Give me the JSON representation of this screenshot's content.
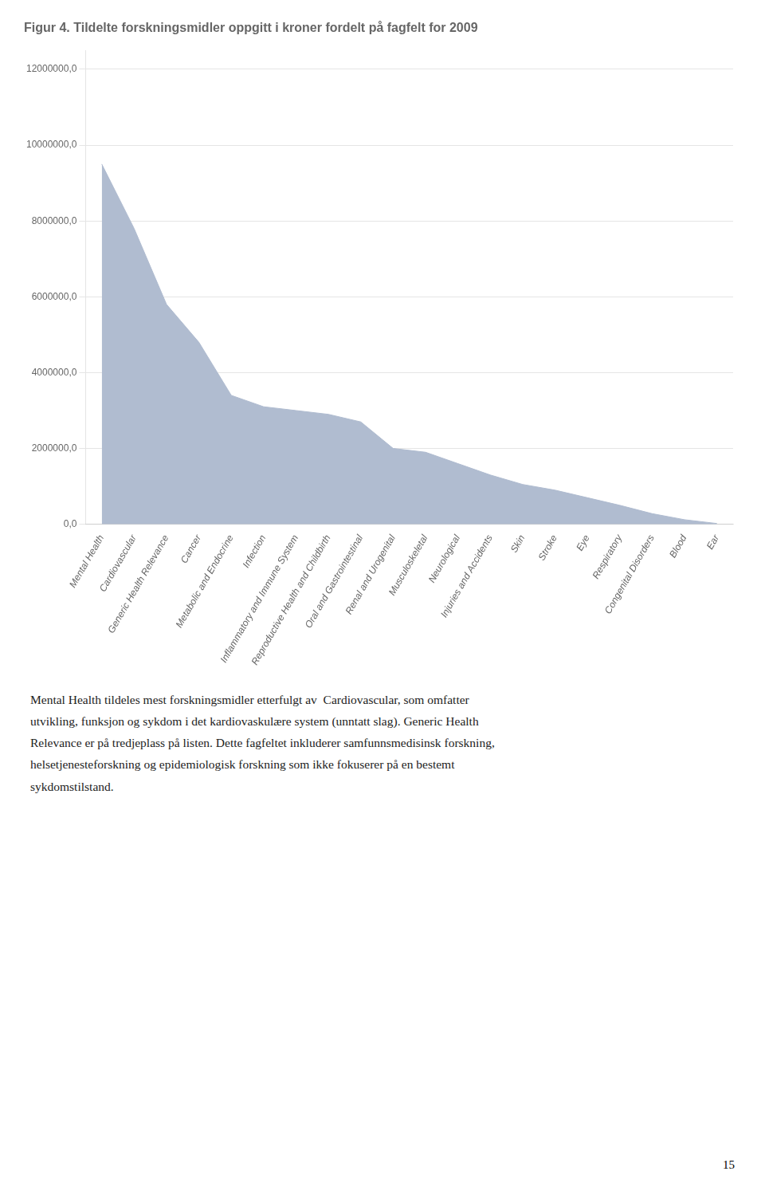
{
  "chart_data": {
    "type": "area",
    "title": "Figur 4. Tildelte forskningsmidler oppgitt i kroner fordelt på fagfelt for 2009",
    "categories": [
      "Mental Health",
      "Cardiovascular",
      "Generic Health Relevance",
      "Cancer",
      "Metabolic and Endocrine",
      "Infection",
      "Inflammatory and Immune System",
      "Reproductive Health and Childbirth",
      "Oral and Gastrointestinal",
      "Renal and Urogenital",
      "Musculoskeletal",
      "Neurological",
      "Injuries and Accidents",
      "Skin",
      "Stroke",
      "Eye",
      "Respiratory",
      "Congenital Disorders",
      "Blood",
      "Ear"
    ],
    "values": [
      9500000,
      7800000,
      5800000,
      4800000,
      3400000,
      3100000,
      3000000,
      2900000,
      2700000,
      2000000,
      1900000,
      1600000,
      1300000,
      1050000,
      900000,
      700000,
      500000,
      280000,
      120000,
      20000
    ],
    "color": "#b0bcd0",
    "ylim": [
      0,
      12500000
    ],
    "yticks": [
      {
        "value": 0,
        "label": "0,0"
      },
      {
        "value": 2000000,
        "label": "2000000,0"
      },
      {
        "value": 4000000,
        "label": "4000000,0"
      },
      {
        "value": 6000000,
        "label": "6000000,0"
      },
      {
        "value": 8000000,
        "label": "8000000,0"
      },
      {
        "value": 10000000,
        "label": "10000000,0"
      },
      {
        "value": 12000000,
        "label": "12000000,0"
      }
    ],
    "grid": true,
    "annotations": [
      "Mental Health tildeles mest forskningsmidler etterfulgt av  Cardiovascular, som omfatter",
      "utvikling, funksjon og sykdom i det kardiovaskulære system (unntatt slag). Generic Health",
      "Relevance er på tredjeplass på listen. Dette fagfeltet inkluderer samfunnsmedisinsk forskning,",
      "helsetjenesteforskning og epidemiologisk forskning som ikke fokuserer på en bestemt",
      "sykdomstilstand.",
      "15"
    ]
  }
}
